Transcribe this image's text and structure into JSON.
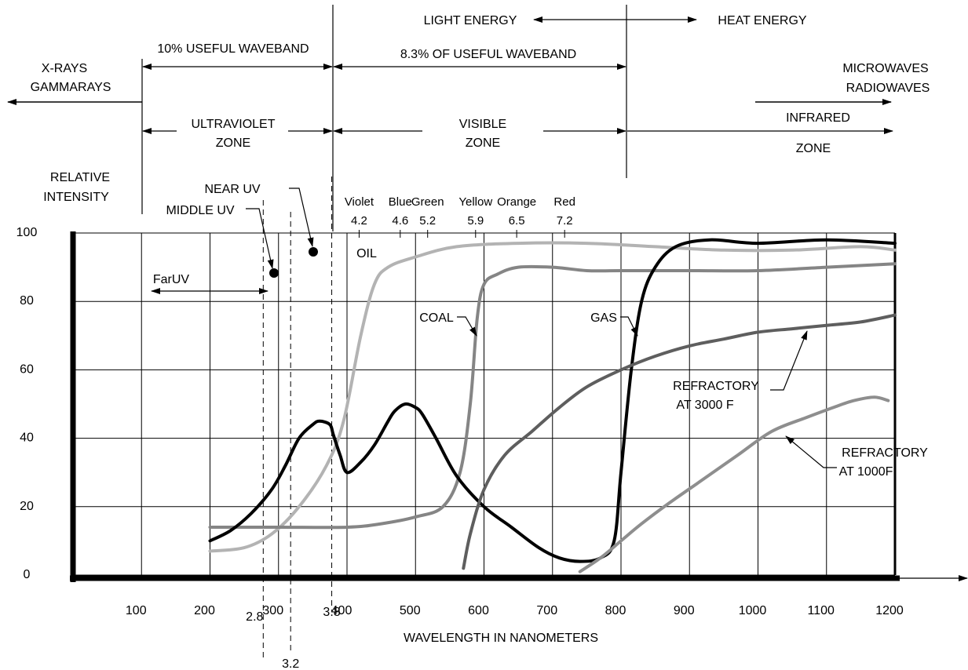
{
  "chart_data": {
    "type": "line",
    "xlabel": "WAVELENGTH IN NANOMETERS",
    "ylabel": "RELATIVE INTENSITY",
    "ylabel_line1": "RELATIVE",
    "ylabel_line2": "INTENSITY",
    "xlim": [
      0,
      1200
    ],
    "ylim": [
      0,
      100
    ],
    "x_ticks": [
      100,
      200,
      300,
      400,
      500,
      600,
      700,
      800,
      900,
      1000,
      1100,
      1200
    ],
    "y_ticks": [
      0,
      20,
      40,
      60,
      80,
      100
    ],
    "grid": true,
    "color_marks": [
      {
        "name": "Violet",
        "value": "4.2",
        "x": 420
      },
      {
        "name": "Blue",
        "value": "4.6",
        "x": 480
      },
      {
        "name": "Green",
        "value": "5.2",
        "x": 520
      },
      {
        "name": "Yellow",
        "value": "5.9",
        "x": 590
      },
      {
        "name": "Orange",
        "value": "6.5",
        "x": 650
      },
      {
        "name": "Red",
        "value": "7.2",
        "x": 720
      }
    ],
    "uv_marks": [
      {
        "value": "2.8",
        "x": 280
      },
      {
        "value": "3.2",
        "x": 320
      },
      {
        "value": "3.8",
        "x": 380
      }
    ],
    "series": [
      {
        "name": "OIL",
        "color": "#b3b3b3",
        "width": 4,
        "x": [
          200,
          250,
          290,
          330,
          370,
          395,
          420,
          440,
          460,
          500,
          560,
          650,
          750,
          850,
          950,
          1050,
          1150,
          1200
        ],
        "y": [
          7,
          8,
          12,
          20,
          32,
          45,
          70,
          85,
          90,
          93,
          96,
          97,
          97,
          96,
          95,
          95,
          96,
          95
        ]
      },
      {
        "name": "COAL",
        "color": "#858585",
        "width": 4,
        "x": [
          200,
          300,
          400,
          450,
          500,
          540,
          565,
          580,
          590,
          600,
          620,
          650,
          700,
          750,
          800,
          900,
          1000,
          1100,
          1200
        ],
        "y": [
          14,
          14,
          14,
          15,
          17,
          20,
          30,
          50,
          75,
          85,
          88,
          90,
          90,
          89,
          89,
          89,
          89,
          90,
          91
        ]
      },
      {
        "name": "GAS",
        "color": "#000000",
        "width": 4,
        "x": [
          200,
          230,
          260,
          290,
          310,
          330,
          350,
          360,
          375,
          380,
          390,
          400,
          420,
          440,
          460,
          470,
          485,
          500,
          510,
          530,
          560,
          600,
          640,
          680,
          710,
          740,
          770,
          790,
          800,
          815,
          830,
          850,
          880,
          930,
          1000,
          1100,
          1200
        ],
        "y": [
          10,
          13,
          18,
          25,
          32,
          40,
          44,
          45,
          44,
          41,
          35,
          30,
          33,
          38,
          45,
          48,
          50,
          49,
          47,
          40,
          29,
          20,
          14,
          8,
          5,
          4,
          5,
          10,
          30,
          60,
          80,
          90,
          96,
          98,
          97,
          98,
          97
        ]
      },
      {
        "name": "REFRACTORY AT 3000 F",
        "color": "#5e5e5e",
        "width": 4,
        "x": [
          570,
          580,
          600,
          630,
          670,
          710,
          750,
          800,
          850,
          900,
          950,
          1000,
          1050,
          1100,
          1150,
          1200
        ],
        "y": [
          2,
          12,
          25,
          35,
          42,
          49,
          55,
          60,
          64,
          67,
          69,
          71,
          72,
          73,
          74,
          76
        ]
      },
      {
        "name": "REFRACTORY AT 1000F",
        "color": "#8e8e8e",
        "width": 4,
        "x": [
          740,
          770,
          800,
          830,
          870,
          920,
          970,
          1020,
          1070,
          1110,
          1140,
          1170,
          1190
        ],
        "y": [
          1,
          5,
          10,
          15,
          21,
          28,
          35,
          42,
          46,
          49,
          51,
          52,
          51
        ]
      }
    ]
  },
  "annotations": {
    "xrays_line1": "X-RAYS",
    "xrays_line2": "GAMMARAYS",
    "useful_waveband": "10%  USEFUL WAVEBAND",
    "light_energy": "LIGHT ENERGY",
    "heat_energy": "HEAT ENERGY",
    "percent_useful": "8.3% OF USEFUL WAVEBAND",
    "microwaves_line1": "MICROWAVES",
    "microwaves_line2": "RADIOWAVES",
    "ultraviolet_line1": "ULTRAVIOLET",
    "ultraviolet_line2": "ZONE",
    "visible_line1": "VISIBLE",
    "visible_line2": "ZONE",
    "infrared_line1": "INFRARED",
    "infrared_line2": "ZONE",
    "near_uv": "NEAR UV",
    "middle_uv": "MIDDLE UV",
    "far_uv": "FarUV",
    "oil": "OIL",
    "coal": "COAL",
    "gas": "GAS",
    "refractory3000_line1": "REFRACTORY",
    "refractory3000_line2": "AT 3000 F",
    "refractory1000_line1": "REFRACTORY",
    "refractory1000_line2": "AT 1000F"
  }
}
